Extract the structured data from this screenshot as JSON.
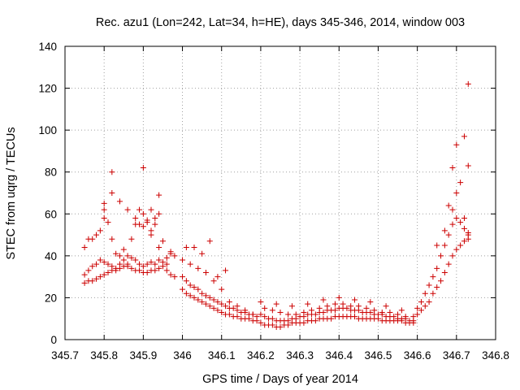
{
  "chart_data": {
    "type": "scatter",
    "title": "Rec. azu1 (Lon=242, Lat=34, h=HE), days 345-346, 2014, window 003",
    "xlabel": "GPS time / Days of year 2014",
    "ylabel": "STEC from uqrg / TECUs",
    "xlim": [
      345.7,
      346.8
    ],
    "ylim": [
      0,
      140
    ],
    "xticks": [
      "345.7",
      "345.8",
      "345.9",
      "346",
      "346.1",
      "346.2",
      "346.3",
      "346.4",
      "346.5",
      "346.6",
      "346.7",
      "346.8"
    ],
    "xtick_values": [
      345.7,
      345.8,
      345.9,
      346.0,
      346.1,
      346.2,
      346.3,
      346.4,
      346.5,
      346.6,
      346.7,
      346.8
    ],
    "yticks": [
      "0",
      "20",
      "40",
      "60",
      "80",
      "100",
      "120",
      "140"
    ],
    "ytick_values": [
      0,
      20,
      40,
      60,
      80,
      100,
      120,
      140
    ],
    "grid": true,
    "marker": "+",
    "series_color": "#cc0000",
    "series": [
      {
        "x": [
          345.75,
          345.76,
          345.77,
          345.78,
          345.79,
          345.8,
          345.81,
          345.82,
          345.83,
          345.84,
          345.85,
          345.86,
          345.87,
          345.88,
          345.89,
          345.9,
          345.91,
          345.92,
          345.93,
          345.94,
          345.95,
          345.96,
          345.97,
          345.98,
          345.75,
          345.76,
          345.77,
          345.78,
          345.79,
          345.8,
          345.81,
          345.82,
          345.83,
          345.84,
          345.85,
          345.86,
          345.87,
          345.88,
          345.89,
          345.9,
          345.91,
          345.92,
          345.93,
          345.94,
          345.95,
          345.96,
          345.97,
          345.98,
          345.75,
          345.77,
          345.79,
          345.81,
          345.83,
          345.85,
          345.87,
          345.89,
          345.91,
          345.93,
          345.95,
          345.97,
          345.76,
          345.78,
          345.8,
          345.82,
          345.84,
          345.86,
          345.88,
          345.9,
          345.92,
          345.94,
          345.96,
          345.8,
          345.82,
          345.84,
          345.86,
          345.88,
          345.9,
          345.92,
          345.94,
          345.8,
          345.9,
          345.91,
          345.93,
          345.82,
          345.89,
          345.92,
          345.94
        ],
        "y": [
          27,
          28,
          28,
          29,
          30,
          31,
          32,
          33,
          33,
          34,
          35,
          35,
          34,
          33,
          33,
          32,
          32,
          33,
          33,
          34,
          35,
          33,
          31,
          30,
          31,
          33,
          35,
          36,
          38,
          37,
          36,
          35,
          34,
          36,
          38,
          40,
          39,
          38,
          36,
          35,
          36,
          37,
          36,
          38,
          37,
          39,
          42,
          40,
          44,
          48,
          52,
          56,
          41,
          43,
          48,
          55,
          56,
          58,
          47,
          41,
          48,
          50,
          58,
          48,
          40,
          36,
          55,
          54,
          50,
          44,
          36,
          65,
          70,
          66,
          62,
          58,
          60,
          62,
          60,
          62,
          82,
          57,
          55,
          80,
          62,
          52,
          69
        ],
        "y_note": ""
      },
      {
        "x": [
          346.0,
          346.01,
          346.02,
          346.03,
          346.04,
          346.05,
          346.06,
          346.07,
          346.08,
          346.09,
          346.1,
          346.11,
          346.12,
          346.13,
          346.14,
          346.15,
          346.16,
          346.17,
          346.18,
          346.19,
          346.0,
          346.01,
          346.02,
          346.03,
          346.04,
          346.05,
          346.06,
          346.07,
          346.08,
          346.09,
          346.1,
          346.11,
          346.12,
          346.13,
          346.14,
          346.15,
          346.16,
          346.17,
          346.18,
          346.19,
          346.0,
          346.02,
          346.04,
          346.06,
          346.08,
          346.1,
          346.12,
          346.14,
          346.16,
          346.18,
          346.01,
          346.03,
          346.05,
          346.07,
          346.09,
          346.11
        ],
        "y": [
          24,
          22,
          21,
          20,
          19,
          18,
          17,
          16,
          15,
          14,
          13,
          12,
          12,
          11,
          11,
          10,
          10,
          10,
          9,
          9,
          30,
          28,
          26,
          25,
          24,
          22,
          21,
          20,
          19,
          18,
          17,
          16,
          15,
          15,
          14,
          13,
          13,
          12,
          12,
          11,
          38,
          36,
          34,
          32,
          28,
          24,
          18,
          16,
          14,
          12,
          44,
          44,
          41,
          47,
          30,
          33
        ],
        "y_note": ""
      },
      {
        "x": [
          346.2,
          346.21,
          346.22,
          346.23,
          346.24,
          346.25,
          346.26,
          346.27,
          346.28,
          346.29,
          346.3,
          346.31,
          346.32,
          346.33,
          346.34,
          346.35,
          346.36,
          346.37,
          346.38,
          346.39,
          346.4,
          346.41,
          346.42,
          346.43,
          346.44,
          346.45,
          346.46,
          346.47,
          346.48,
          346.49,
          346.5,
          346.51,
          346.52,
          346.53,
          346.54,
          346.55,
          346.56,
          346.57,
          346.58,
          346.59,
          346.2,
          346.21,
          346.22,
          346.23,
          346.24,
          346.25,
          346.26,
          346.27,
          346.28,
          346.29,
          346.3,
          346.31,
          346.32,
          346.33,
          346.34,
          346.35,
          346.36,
          346.37,
          346.38,
          346.39,
          346.4,
          346.41,
          346.42,
          346.43,
          346.44,
          346.45,
          346.46,
          346.47,
          346.48,
          346.49,
          346.5,
          346.51,
          346.52,
          346.53,
          346.54,
          346.55,
          346.56,
          346.57,
          346.58,
          346.59,
          346.21,
          346.23,
          346.25,
          346.27,
          346.29,
          346.31,
          346.33,
          346.35,
          346.37,
          346.39,
          346.41,
          346.43,
          346.45,
          346.47,
          346.49,
          346.51,
          346.53,
          346.55,
          346.57,
          346.59,
          346.2,
          346.24,
          346.28,
          346.32,
          346.36,
          346.4,
          346.44,
          346.48,
          346.52,
          346.56
        ],
        "y": [
          8,
          7,
          7,
          7,
          6,
          6,
          7,
          7,
          8,
          8,
          8,
          8,
          9,
          9,
          9,
          10,
          10,
          10,
          10,
          11,
          11,
          11,
          11,
          11,
          11,
          10,
          10,
          10,
          10,
          10,
          10,
          9,
          9,
          9,
          9,
          9,
          9,
          8,
          8,
          8,
          12,
          11,
          10,
          10,
          9,
          9,
          9,
          9,
          10,
          10,
          11,
          11,
          12,
          12,
          12,
          13,
          13,
          14,
          14,
          14,
          15,
          15,
          15,
          14,
          14,
          14,
          13,
          13,
          13,
          12,
          12,
          12,
          11,
          11,
          11,
          10,
          10,
          10,
          9,
          9,
          15,
          14,
          13,
          12,
          12,
          13,
          14,
          15,
          16,
          17,
          17,
          16,
          16,
          15,
          14,
          13,
          13,
          12,
          11,
          11,
          18,
          17,
          16,
          17,
          19,
          20,
          19,
          18,
          16,
          14
        ],
        "y_note": ""
      },
      {
        "x": [
          346.6,
          346.61,
          346.62,
          346.63,
          346.64,
          346.65,
          346.66,
          346.67,
          346.68,
          346.69,
          346.7,
          346.71,
          346.72,
          346.73,
          346.6,
          346.61,
          346.62,
          346.63,
          346.64,
          346.65,
          346.66,
          346.67,
          346.68,
          346.69,
          346.7,
          346.71,
          346.72,
          346.73,
          346.65,
          346.67,
          346.68,
          346.69,
          346.7,
          346.71,
          346.72,
          346.73,
          346.69,
          346.7,
          346.72,
          346.73,
          346.73
        ],
        "y": [
          12,
          14,
          16,
          18,
          22,
          25,
          28,
          32,
          36,
          40,
          43,
          45,
          47,
          50,
          15,
          18,
          22,
          26,
          30,
          34,
          40,
          45,
          50,
          55,
          58,
          56,
          53,
          51,
          45,
          52,
          64,
          62,
          70,
          75,
          58,
          48,
          82,
          93,
          97,
          83,
          122
        ],
        "y_note": ""
      }
    ]
  }
}
